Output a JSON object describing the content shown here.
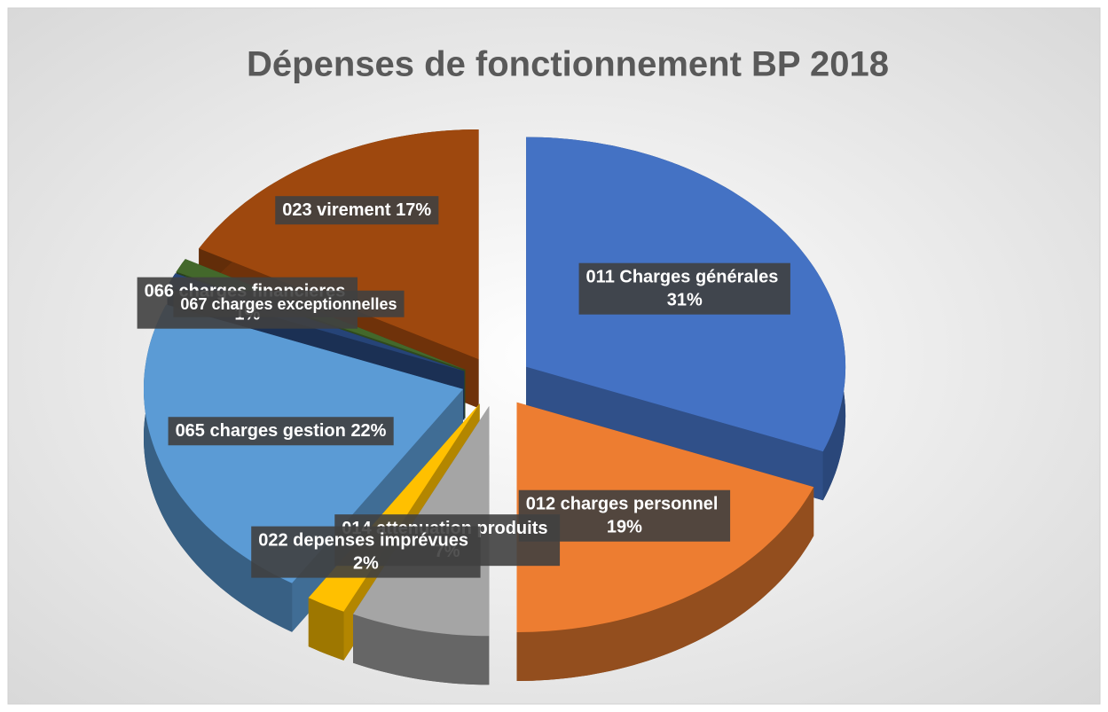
{
  "chart_data": {
    "type": "pie",
    "title": "Dépenses de fonctionnement BP 2018",
    "categories": [
      "011 Charges générales",
      "012 charges personnel",
      "014 attenuation produits",
      "022 depenses imprévues",
      "065 charges gestion",
      "066 charges financieres",
      "067 charges exceptionnelles",
      "023 virement"
    ],
    "values": [
      31,
      19,
      7,
      2,
      22,
      1,
      1,
      17
    ],
    "value_labels": [
      "31%",
      "19%",
      "7%",
      "2%",
      "22%",
      "1%",
      null,
      "17%"
    ],
    "colors": [
      "#4472c4",
      "#ed7d31",
      "#a5a5a5",
      "#ffc000",
      "#5b9bd5",
      "#264478",
      "#43682b",
      "#9e480e"
    ]
  }
}
